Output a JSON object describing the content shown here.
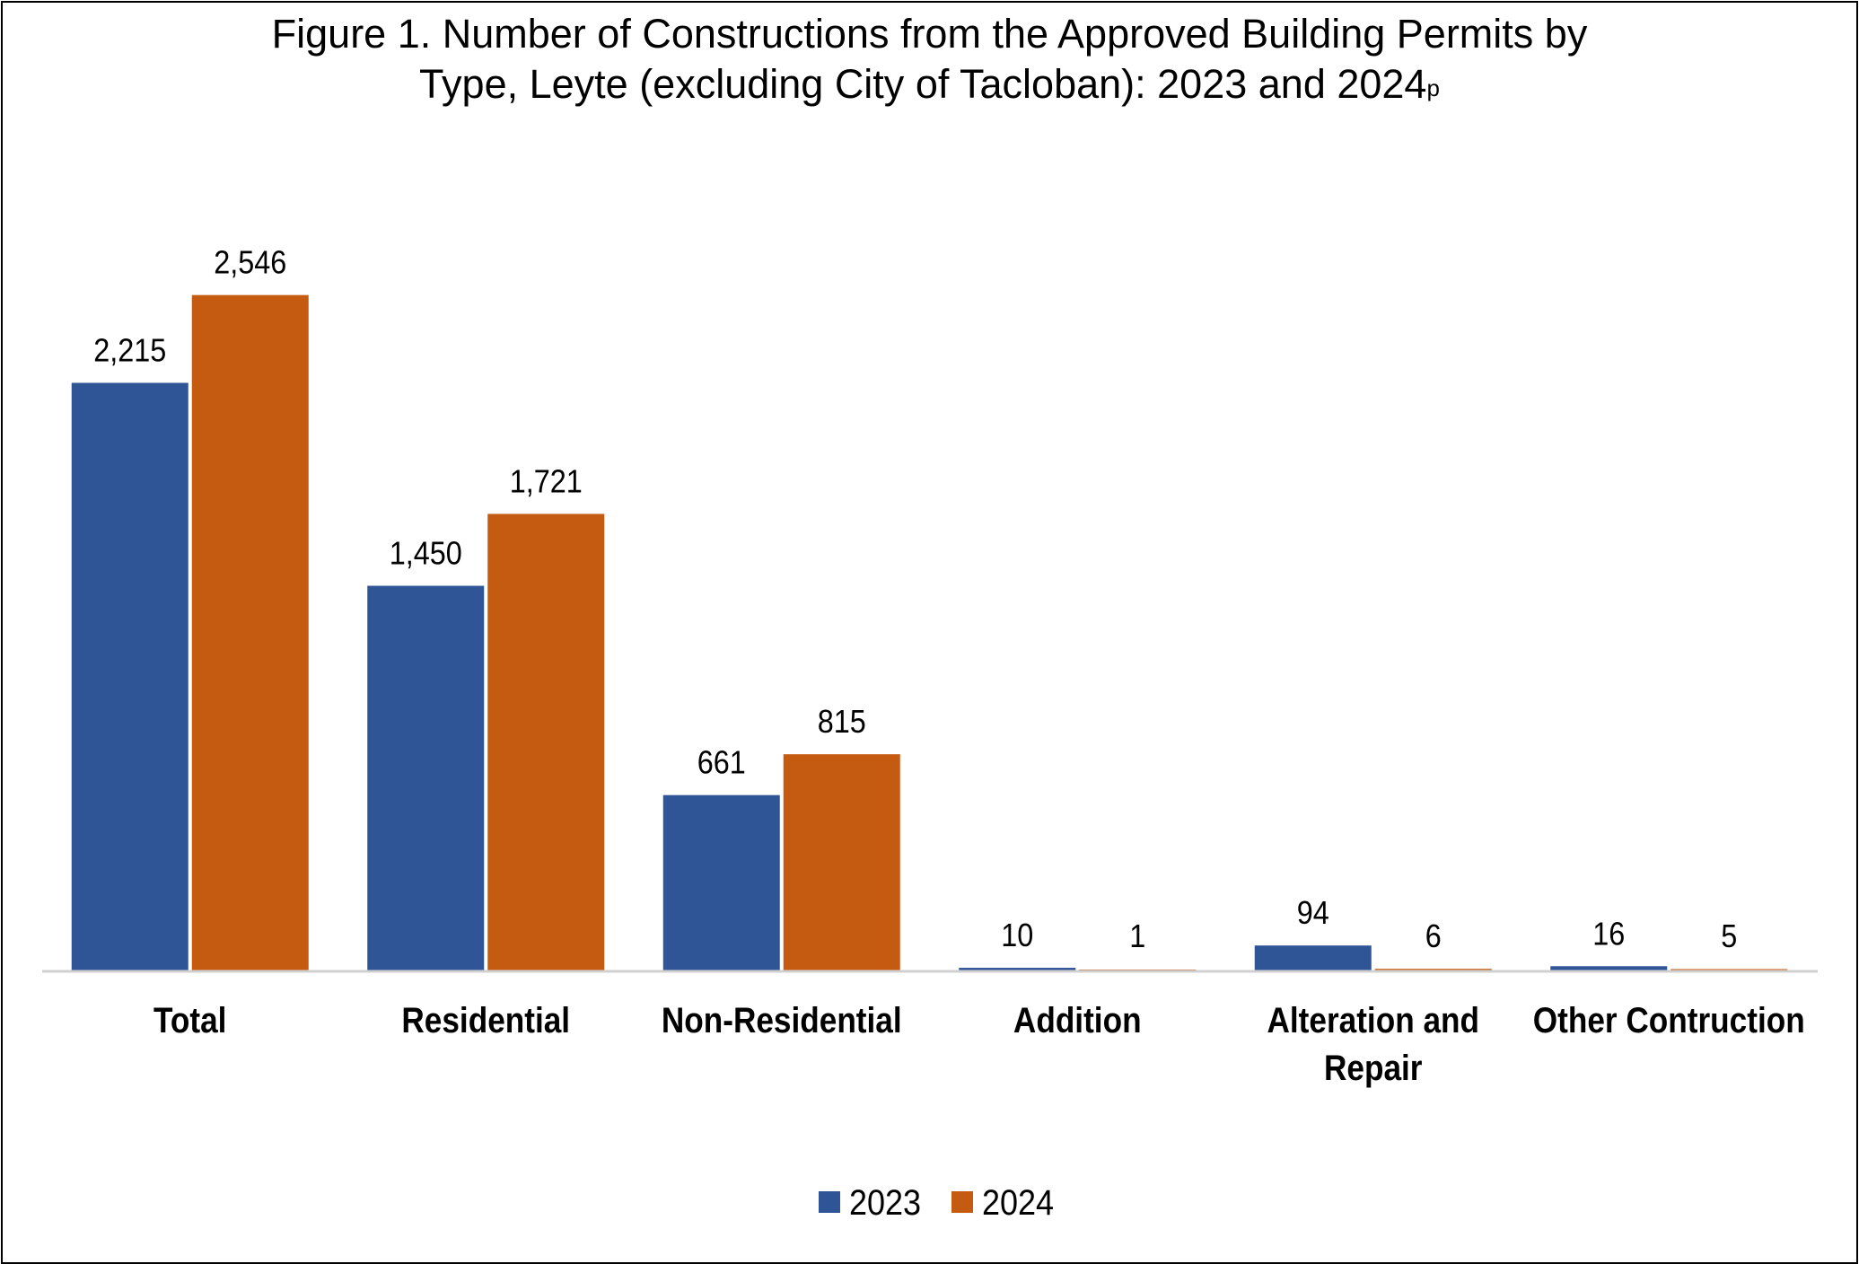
{
  "chart_data": {
    "type": "bar",
    "title_line1": "Figure 1. Number of Constructions from the Approved Building Permits by",
    "title_line2": "Type, Leyte (excluding City of Tacloban): 2023 and 2024",
    "title_superscript": "p",
    "categories": [
      [
        "Total"
      ],
      [
        "Residential"
      ],
      [
        "Non-Residential"
      ],
      [
        "Addition"
      ],
      [
        "Alteration and",
        "Repair"
      ],
      [
        "Other Contruction"
      ]
    ],
    "series": [
      {
        "name": "2023",
        "color": "#2F5597",
        "values": [
          2215,
          1450,
          661,
          10,
          94,
          16
        ],
        "labels": [
          "2,215",
          "1,450",
          "661",
          "10",
          "94",
          "16"
        ]
      },
      {
        "name": "2024",
        "color": "#C55A11",
        "values": [
          2546,
          1721,
          815,
          1,
          6,
          5
        ],
        "labels": [
          "2,546",
          "1,721",
          "815",
          "1",
          "6",
          "5"
        ]
      }
    ],
    "ylim": [
      0,
      3000
    ],
    "grid": false,
    "legend_position": "bottom"
  }
}
